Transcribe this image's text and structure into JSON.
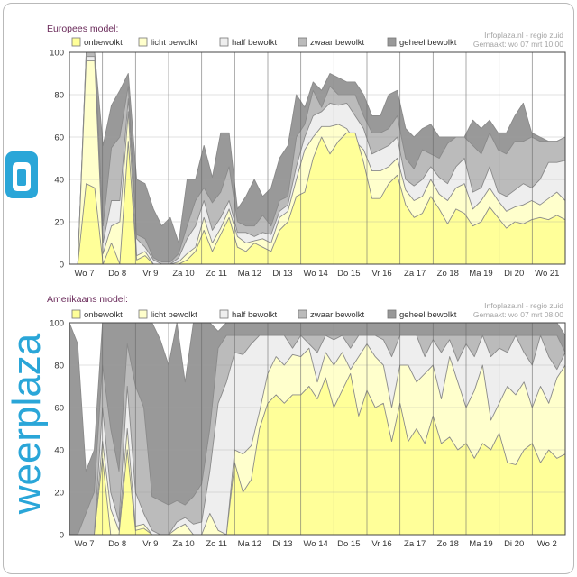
{
  "brand": {
    "name": "weerplaza",
    "color": "#2aa6d8"
  },
  "chart_data": [
    {
      "type": "area",
      "title": "Europees model:",
      "source": "Infoplaza.nl - regio zuid",
      "made": "Gemaakt: wo 07 mrt 10:00",
      "ylim": [
        0,
        100
      ],
      "yticks": [
        0,
        20,
        40,
        60,
        80,
        100
      ],
      "grid": true,
      "legend_position": "top",
      "x_ticks": [
        "Wo 7",
        "Do 8",
        "Vr 9",
        "Za 10",
        "Zo 11",
        "Ma 12",
        "Di 13",
        "Wo 14",
        "Do 15",
        "Vr 16",
        "Za 17",
        "Zo 18",
        "Ma 19",
        "Di 20",
        "Wo 21"
      ],
      "legend": [
        {
          "name": "onbewolkt",
          "color": "#ffff99"
        },
        {
          "name": "licht bewolkt",
          "color": "#ffffcc"
        },
        {
          "name": "half bewolkt",
          "color": "#eeeeee"
        },
        {
          "name": "zwaar bewolkt",
          "color": "#bbbbbb"
        },
        {
          "name": "geheel bewolkt",
          "color": "#999999"
        }
      ],
      "series": [
        {
          "name": "onbewolkt",
          "values": [
            0,
            0,
            38,
            36,
            0,
            10,
            0,
            58,
            2,
            4,
            0,
            0,
            0,
            0,
            2,
            6,
            16,
            6,
            14,
            22,
            8,
            6,
            10,
            8,
            6,
            16,
            20,
            32,
            34,
            50,
            60,
            52,
            58,
            62,
            62,
            48,
            31,
            31,
            38,
            42,
            28,
            22,
            24,
            32,
            26,
            19,
            26,
            24,
            18,
            20,
            27,
            22,
            17,
            20,
            19,
            21,
            22,
            21,
            23,
            21
          ]
        },
        {
          "name": "licht bewolkt",
          "values": [
            0,
            0,
            96,
            96,
            5,
            18,
            20,
            72,
            4,
            6,
            0,
            0,
            0,
            1,
            5,
            8,
            22,
            10,
            17,
            26,
            13,
            10,
            11,
            12,
            10,
            22,
            25,
            40,
            54,
            60,
            65,
            65,
            66,
            64,
            58,
            54,
            44,
            44,
            46,
            50,
            35,
            30,
            32,
            40,
            33,
            30,
            36,
            38,
            26,
            30,
            36,
            30,
            25,
            27,
            28,
            30,
            28,
            31,
            34,
            30
          ]
        },
        {
          "name": "half bewolkt",
          "values": [
            0,
            0,
            98,
            98,
            10,
            30,
            30,
            78,
            12,
            8,
            2,
            0,
            0,
            3,
            12,
            18,
            30,
            16,
            22,
            30,
            15,
            15,
            13,
            15,
            14,
            25,
            28,
            46,
            60,
            70,
            72,
            76,
            75,
            76,
            70,
            64,
            52,
            54,
            56,
            60,
            40,
            37,
            40,
            46,
            41,
            38,
            46,
            50,
            34,
            36,
            46,
            34,
            32,
            35,
            38,
            36,
            40,
            48,
            48,
            49
          ]
        },
        {
          "name": "zwaar bewolkt",
          "values": [
            0,
            0,
            100,
            100,
            18,
            55,
            60,
            84,
            14,
            12,
            3,
            1,
            1,
            5,
            18,
            30,
            36,
            29,
            34,
            46,
            20,
            18,
            18,
            23,
            18,
            30,
            32,
            60,
            66,
            82,
            74,
            84,
            80,
            80,
            80,
            70,
            62,
            62,
            64,
            70,
            50,
            45,
            54,
            52,
            50,
            57,
            60,
            60,
            56,
            52,
            62,
            54,
            52,
            58,
            58,
            60,
            58,
            58,
            58,
            60
          ]
        },
        {
          "name": "geheel bewolkt",
          "values": [
            0,
            0,
            100,
            100,
            56,
            75,
            82,
            90,
            40,
            38,
            26,
            18,
            22,
            10,
            40,
            40,
            56,
            41,
            62,
            62,
            26,
            32,
            40,
            32,
            36,
            50,
            56,
            80,
            74,
            86,
            82,
            90,
            88,
            86,
            86,
            80,
            70,
            70,
            80,
            82,
            64,
            60,
            64,
            66,
            60,
            60,
            60,
            60,
            68,
            64,
            68,
            62,
            62,
            70,
            76,
            62,
            60,
            58,
            58,
            60
          ]
        }
      ]
    },
    {
      "type": "area",
      "title": "Amerikaans model:",
      "source": "Infoplaza.nl - regio zuid",
      "made": "Gemaakt: wo 07 mrt 08:00",
      "ylim": [
        0,
        100
      ],
      "yticks": [
        0,
        20,
        40,
        60,
        80,
        100
      ],
      "grid": true,
      "legend_position": "top",
      "x_ticks": [
        "Wo 7",
        "Do 8",
        "Vr 9",
        "Za 10",
        "Zo 11",
        "Ma 12",
        "Di 13",
        "Wo 14",
        "Do 15",
        "Vr 16",
        "Za 17",
        "Zo 18",
        "Ma 19",
        "Di 20",
        "Wo 2"
      ],
      "legend": [
        {
          "name": "onbewolkt",
          "color": "#ffff99"
        },
        {
          "name": "licht bewolkt",
          "color": "#ffffcc"
        },
        {
          "name": "half bewolkt",
          "color": "#eeeeee"
        },
        {
          "name": "zwaar bewolkt",
          "color": "#bbbbbb"
        },
        {
          "name": "geheel bewolkt",
          "color": "#999999"
        }
      ],
      "series": [
        {
          "name": "onbewolkt",
          "values": [
            0,
            0,
            0,
            0,
            36,
            0,
            0,
            40,
            2,
            3,
            0,
            0,
            0,
            0,
            0,
            0,
            0,
            0,
            0,
            0,
            34,
            20,
            26,
            50,
            62,
            66,
            62,
            66,
            66,
            70,
            64,
            74,
            60,
            68,
            76,
            56,
            68,
            60,
            62,
            44,
            62,
            44,
            50,
            43,
            56,
            43,
            46,
            40,
            43,
            36,
            43,
            40,
            48,
            34,
            33,
            40,
            43,
            34,
            40,
            36,
            38
          ]
        },
        {
          "name": "licht bewolkt",
          "values": [
            0,
            0,
            0,
            0,
            44,
            12,
            2,
            50,
            4,
            5,
            0,
            0,
            0,
            3,
            5,
            0,
            0,
            10,
            2,
            0,
            40,
            38,
            42,
            58,
            76,
            84,
            80,
            85,
            84,
            88,
            72,
            86,
            80,
            86,
            78,
            84,
            90,
            84,
            80,
            60,
            80,
            80,
            72,
            76,
            80,
            64,
            84,
            72,
            60,
            68,
            80,
            54,
            62,
            70,
            66,
            72,
            60,
            70,
            62,
            74,
            80
          ]
        },
        {
          "name": "half bewolkt",
          "values": [
            0,
            0,
            0,
            0,
            60,
            20,
            6,
            70,
            20,
            10,
            2,
            0,
            0,
            6,
            8,
            5,
            6,
            30,
            62,
            72,
            86,
            85,
            90,
            94,
            94,
            94,
            94,
            88,
            94,
            90,
            86,
            94,
            92,
            94,
            88,
            94,
            94,
            94,
            92,
            84,
            94,
            94,
            94,
            84,
            92,
            86,
            92,
            82,
            90,
            84,
            94,
            84,
            88,
            86,
            94,
            86,
            80,
            94,
            84,
            78,
            86
          ]
        },
        {
          "name": "zwaar bewolkt",
          "values": [
            0,
            0,
            10,
            20,
            80,
            50,
            30,
            90,
            70,
            60,
            18,
            16,
            14,
            16,
            14,
            18,
            24,
            50,
            88,
            94,
            94,
            94,
            94,
            94,
            94,
            94,
            94,
            94,
            94,
            94,
            94,
            94,
            94,
            94,
            94,
            94,
            94,
            94,
            94,
            94,
            94,
            94,
            94,
            94,
            94,
            94,
            94,
            94,
            94,
            94,
            94,
            94,
            94,
            94,
            94,
            94,
            94,
            94,
            94,
            94,
            86
          ]
        },
        {
          "name": "geheel bewolkt",
          "values": [
            100,
            90,
            30,
            40,
            100,
            100,
            100,
            100,
            100,
            100,
            100,
            92,
            80,
            100,
            72,
            100,
            100,
            100,
            96,
            100,
            100,
            100,
            100,
            100,
            100,
            100,
            100,
            100,
            100,
            100,
            100,
            100,
            100,
            100,
            100,
            100,
            100,
            100,
            100,
            100,
            100,
            100,
            100,
            100,
            100,
            100,
            100,
            100,
            100,
            100,
            100,
            100,
            100,
            100,
            100,
            100,
            100,
            100,
            100,
            100,
            94
          ]
        }
      ]
    }
  ]
}
